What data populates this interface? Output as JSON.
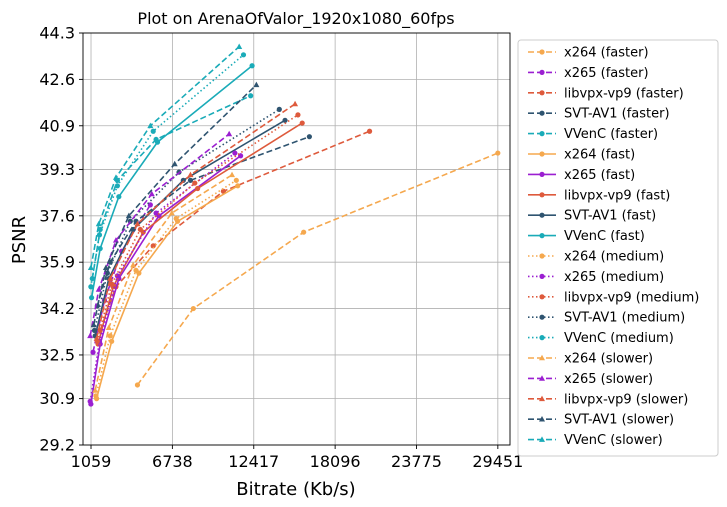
{
  "chart_data": {
    "type": "line",
    "title": "Plot on ArenaOfValor_1920x1080_60fps",
    "xlabel": "Bitrate (Kb/s)",
    "ylabel": "PSNR",
    "xlim": [
      500,
      30300
    ],
    "ylim": [
      29.2,
      44.3
    ],
    "xticks": [
      1059,
      6738,
      12417,
      18096,
      23775,
      29451
    ],
    "xtick_labels": [
      "1059",
      "6738",
      "12417",
      "18096",
      "23775",
      "29451"
    ],
    "yticks": [
      29.2,
      30.9,
      32.5,
      34.2,
      35.9,
      37.6,
      39.3,
      40.9,
      42.6,
      44.3
    ],
    "ytick_labels": [
      "29.2",
      "30.9",
      "32.5",
      "34.2",
      "35.9",
      "37.6",
      "39.3",
      "40.9",
      "42.6",
      "44.3"
    ],
    "grid": true,
    "legend_position": "outside-right",
    "series": [
      {
        "name": "x264 (faster)",
        "color": "#f5a84e",
        "dash": "dashed",
        "marker": "circle",
        "x": [
          4300,
          8200,
          15900,
          29451
        ],
        "y": [
          31.4,
          34.2,
          37.0,
          39.9
        ]
      },
      {
        "name": "x265 (faster)",
        "color": "#9b1fd1",
        "dash": "dashed",
        "marker": "circle",
        "x": [
          1200,
          2000,
          3200,
          5200
        ],
        "y": [
          32.6,
          34.5,
          36.3,
          38.0
        ]
      },
      {
        "name": "libvpx-vp9 (faster)",
        "color": "#de5a3c",
        "dash": "dashed",
        "marker": "circle",
        "x": [
          1700,
          2800,
          5400,
          10300,
          20500
        ],
        "y": [
          33.4,
          35.0,
          36.5,
          38.5,
          40.7
        ]
      },
      {
        "name": "SVT-AV1 (faster)",
        "color": "#2f5470",
        "dash": "dashed",
        "marker": "circle",
        "x": [
          1500,
          2400,
          4200,
          8000,
          16300
        ],
        "y": [
          34.3,
          35.9,
          37.4,
          38.9,
          40.5
        ]
      },
      {
        "name": "VVenC (faster)",
        "color": "#1aabb8",
        "dash": "dashed",
        "marker": "circle",
        "x": [
          1150,
          1700,
          2900,
          5600,
          12200
        ],
        "y": [
          35.3,
          37.1,
          38.9,
          40.4,
          42.0
        ]
      },
      {
        "name": "x264 (fast)",
        "color": "#f5a84e",
        "dash": "solid",
        "marker": "circle",
        "x": [
          1450,
          2500,
          4400,
          7100,
          11300
        ],
        "y": [
          30.9,
          33.0,
          35.5,
          37.4,
          38.7
        ]
      },
      {
        "name": "x265 (fast)",
        "color": "#9b1fd1",
        "dash": "solid",
        "marker": "circle",
        "x": [
          1050,
          1700,
          3000,
          5800,
          11500
        ],
        "y": [
          30.7,
          32.9,
          35.3,
          37.6,
          39.8
        ]
      },
      {
        "name": "libvpx-vp9 (fast)",
        "color": "#de5a3c",
        "dash": "solid",
        "marker": "circle",
        "x": [
          1550,
          2600,
          4700,
          8500,
          15800
        ],
        "y": [
          32.9,
          35.0,
          37.0,
          38.6,
          41.0
        ]
      },
      {
        "name": "SVT-AV1 (fast)",
        "color": "#2f5470",
        "dash": "solid",
        "marker": "circle",
        "x": [
          1350,
          2300,
          4000,
          7500,
          14600
        ],
        "y": [
          33.2,
          35.3,
          37.1,
          38.9,
          41.1
        ]
      },
      {
        "name": "VVenC (fast)",
        "color": "#1aabb8",
        "dash": "solid",
        "marker": "circle",
        "x": [
          1100,
          1700,
          3000,
          5700,
          12300
        ],
        "y": [
          34.6,
          36.4,
          38.3,
          40.3,
          43.1
        ]
      },
      {
        "name": "x264 (medium)",
        "color": "#f5a84e",
        "dash": "dotted",
        "marker": "circle",
        "x": [
          1400,
          2400,
          4200,
          7000,
          11200
        ],
        "y": [
          31.0,
          33.2,
          35.6,
          37.5,
          38.9
        ]
      },
      {
        "name": "x265 (medium)",
        "color": "#9b1fd1",
        "dash": "dotted",
        "marker": "circle",
        "x": [
          1000,
          1650,
          2900,
          5600,
          11100
        ],
        "y": [
          30.8,
          33.0,
          35.4,
          37.7,
          39.9
        ]
      },
      {
        "name": "libvpx-vp9 (medium)",
        "color": "#de5a3c",
        "dash": "dotted",
        "marker": "circle",
        "x": [
          1500,
          2500,
          4500,
          8300,
          15500
        ],
        "y": [
          33.0,
          35.1,
          37.1,
          38.8,
          41.3
        ]
      },
      {
        "name": "SVT-AV1 (medium)",
        "color": "#2f5470",
        "dash": "dotted",
        "marker": "circle",
        "x": [
          1300,
          2200,
          3800,
          7200,
          14200
        ],
        "y": [
          33.4,
          35.5,
          37.4,
          39.2,
          41.5
        ]
      },
      {
        "name": "VVenC (medium)",
        "color": "#1aabb8",
        "dash": "dotted",
        "marker": "circle",
        "x": [
          1050,
          1650,
          2900,
          5400,
          11700
        ],
        "y": [
          35.0,
          36.9,
          38.7,
          40.7,
          43.5
        ]
      },
      {
        "name": "x264 (slower)",
        "color": "#f5a84e",
        "dash": "dashed",
        "marker": "triangle",
        "x": [
          1350,
          2300,
          4000,
          6700,
          10900
        ],
        "y": [
          31.2,
          33.5,
          35.8,
          37.7,
          39.1
        ]
      },
      {
        "name": "x265 (slower)",
        "color": "#9b1fd1",
        "dash": "dashed",
        "marker": "triangle",
        "x": [
          1000,
          1600,
          2800,
          5300,
          10700
        ],
        "y": [
          33.2,
          34.9,
          36.7,
          38.4,
          40.6
        ]
      },
      {
        "name": "libvpx-vp9 (slower)",
        "color": "#de5a3c",
        "dash": "dashed",
        "marker": "triangle",
        "x": [
          1450,
          2400,
          4300,
          8000,
          15300
        ],
        "y": [
          33.1,
          35.3,
          37.3,
          39.1,
          41.7
        ]
      },
      {
        "name": "SVT-AV1 (slower)",
        "color": "#2f5470",
        "dash": "dashed",
        "marker": "triangle",
        "x": [
          1250,
          2100,
          3700,
          6900,
          12600
        ],
        "y": [
          33.6,
          35.7,
          37.6,
          39.5,
          42.4
        ]
      },
      {
        "name": "VVenC (slower)",
        "color": "#1aabb8",
        "dash": "dashed",
        "marker": "triangle",
        "x": [
          1050,
          1600,
          2800,
          5200,
          11400
        ],
        "y": [
          35.7,
          37.3,
          39.0,
          40.9,
          43.8
        ]
      }
    ]
  }
}
